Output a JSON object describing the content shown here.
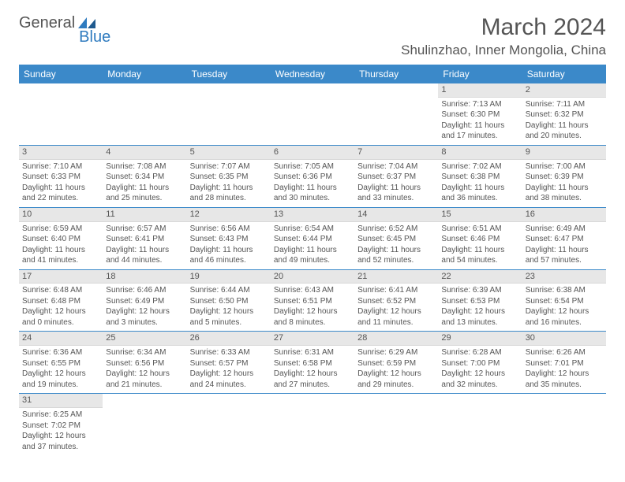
{
  "logo": {
    "text1": "General",
    "text2": "Blue"
  },
  "title": "March 2024",
  "location": "Shulinzhao, Inner Mongolia, China",
  "colors": {
    "header_bg": "#3b89c9",
    "header_text": "#ffffff",
    "daynum_bg": "#e7e7e7",
    "text": "#555555",
    "row_border": "#3b89c9"
  },
  "days_of_week": [
    "Sunday",
    "Monday",
    "Tuesday",
    "Wednesday",
    "Thursday",
    "Friday",
    "Saturday"
  ],
  "weeks": [
    [
      null,
      null,
      null,
      null,
      null,
      {
        "n": "1",
        "sr": "Sunrise: 7:13 AM",
        "ss": "Sunset: 6:30 PM",
        "dl": "Daylight: 11 hours and 17 minutes."
      },
      {
        "n": "2",
        "sr": "Sunrise: 7:11 AM",
        "ss": "Sunset: 6:32 PM",
        "dl": "Daylight: 11 hours and 20 minutes."
      }
    ],
    [
      {
        "n": "3",
        "sr": "Sunrise: 7:10 AM",
        "ss": "Sunset: 6:33 PM",
        "dl": "Daylight: 11 hours and 22 minutes."
      },
      {
        "n": "4",
        "sr": "Sunrise: 7:08 AM",
        "ss": "Sunset: 6:34 PM",
        "dl": "Daylight: 11 hours and 25 minutes."
      },
      {
        "n": "5",
        "sr": "Sunrise: 7:07 AM",
        "ss": "Sunset: 6:35 PM",
        "dl": "Daylight: 11 hours and 28 minutes."
      },
      {
        "n": "6",
        "sr": "Sunrise: 7:05 AM",
        "ss": "Sunset: 6:36 PM",
        "dl": "Daylight: 11 hours and 30 minutes."
      },
      {
        "n": "7",
        "sr": "Sunrise: 7:04 AM",
        "ss": "Sunset: 6:37 PM",
        "dl": "Daylight: 11 hours and 33 minutes."
      },
      {
        "n": "8",
        "sr": "Sunrise: 7:02 AM",
        "ss": "Sunset: 6:38 PM",
        "dl": "Daylight: 11 hours and 36 minutes."
      },
      {
        "n": "9",
        "sr": "Sunrise: 7:00 AM",
        "ss": "Sunset: 6:39 PM",
        "dl": "Daylight: 11 hours and 38 minutes."
      }
    ],
    [
      {
        "n": "10",
        "sr": "Sunrise: 6:59 AM",
        "ss": "Sunset: 6:40 PM",
        "dl": "Daylight: 11 hours and 41 minutes."
      },
      {
        "n": "11",
        "sr": "Sunrise: 6:57 AM",
        "ss": "Sunset: 6:41 PM",
        "dl": "Daylight: 11 hours and 44 minutes."
      },
      {
        "n": "12",
        "sr": "Sunrise: 6:56 AM",
        "ss": "Sunset: 6:43 PM",
        "dl": "Daylight: 11 hours and 46 minutes."
      },
      {
        "n": "13",
        "sr": "Sunrise: 6:54 AM",
        "ss": "Sunset: 6:44 PM",
        "dl": "Daylight: 11 hours and 49 minutes."
      },
      {
        "n": "14",
        "sr": "Sunrise: 6:52 AM",
        "ss": "Sunset: 6:45 PM",
        "dl": "Daylight: 11 hours and 52 minutes."
      },
      {
        "n": "15",
        "sr": "Sunrise: 6:51 AM",
        "ss": "Sunset: 6:46 PM",
        "dl": "Daylight: 11 hours and 54 minutes."
      },
      {
        "n": "16",
        "sr": "Sunrise: 6:49 AM",
        "ss": "Sunset: 6:47 PM",
        "dl": "Daylight: 11 hours and 57 minutes."
      }
    ],
    [
      {
        "n": "17",
        "sr": "Sunrise: 6:48 AM",
        "ss": "Sunset: 6:48 PM",
        "dl": "Daylight: 12 hours and 0 minutes."
      },
      {
        "n": "18",
        "sr": "Sunrise: 6:46 AM",
        "ss": "Sunset: 6:49 PM",
        "dl": "Daylight: 12 hours and 3 minutes."
      },
      {
        "n": "19",
        "sr": "Sunrise: 6:44 AM",
        "ss": "Sunset: 6:50 PM",
        "dl": "Daylight: 12 hours and 5 minutes."
      },
      {
        "n": "20",
        "sr": "Sunrise: 6:43 AM",
        "ss": "Sunset: 6:51 PM",
        "dl": "Daylight: 12 hours and 8 minutes."
      },
      {
        "n": "21",
        "sr": "Sunrise: 6:41 AM",
        "ss": "Sunset: 6:52 PM",
        "dl": "Daylight: 12 hours and 11 minutes."
      },
      {
        "n": "22",
        "sr": "Sunrise: 6:39 AM",
        "ss": "Sunset: 6:53 PM",
        "dl": "Daylight: 12 hours and 13 minutes."
      },
      {
        "n": "23",
        "sr": "Sunrise: 6:38 AM",
        "ss": "Sunset: 6:54 PM",
        "dl": "Daylight: 12 hours and 16 minutes."
      }
    ],
    [
      {
        "n": "24",
        "sr": "Sunrise: 6:36 AM",
        "ss": "Sunset: 6:55 PM",
        "dl": "Daylight: 12 hours and 19 minutes."
      },
      {
        "n": "25",
        "sr": "Sunrise: 6:34 AM",
        "ss": "Sunset: 6:56 PM",
        "dl": "Daylight: 12 hours and 21 minutes."
      },
      {
        "n": "26",
        "sr": "Sunrise: 6:33 AM",
        "ss": "Sunset: 6:57 PM",
        "dl": "Daylight: 12 hours and 24 minutes."
      },
      {
        "n": "27",
        "sr": "Sunrise: 6:31 AM",
        "ss": "Sunset: 6:58 PM",
        "dl": "Daylight: 12 hours and 27 minutes."
      },
      {
        "n": "28",
        "sr": "Sunrise: 6:29 AM",
        "ss": "Sunset: 6:59 PM",
        "dl": "Daylight: 12 hours and 29 minutes."
      },
      {
        "n": "29",
        "sr": "Sunrise: 6:28 AM",
        "ss": "Sunset: 7:00 PM",
        "dl": "Daylight: 12 hours and 32 minutes."
      },
      {
        "n": "30",
        "sr": "Sunrise: 6:26 AM",
        "ss": "Sunset: 7:01 PM",
        "dl": "Daylight: 12 hours and 35 minutes."
      }
    ],
    [
      {
        "n": "31",
        "sr": "Sunrise: 6:25 AM",
        "ss": "Sunset: 7:02 PM",
        "dl": "Daylight: 12 hours and 37 minutes."
      },
      null,
      null,
      null,
      null,
      null,
      null
    ]
  ]
}
